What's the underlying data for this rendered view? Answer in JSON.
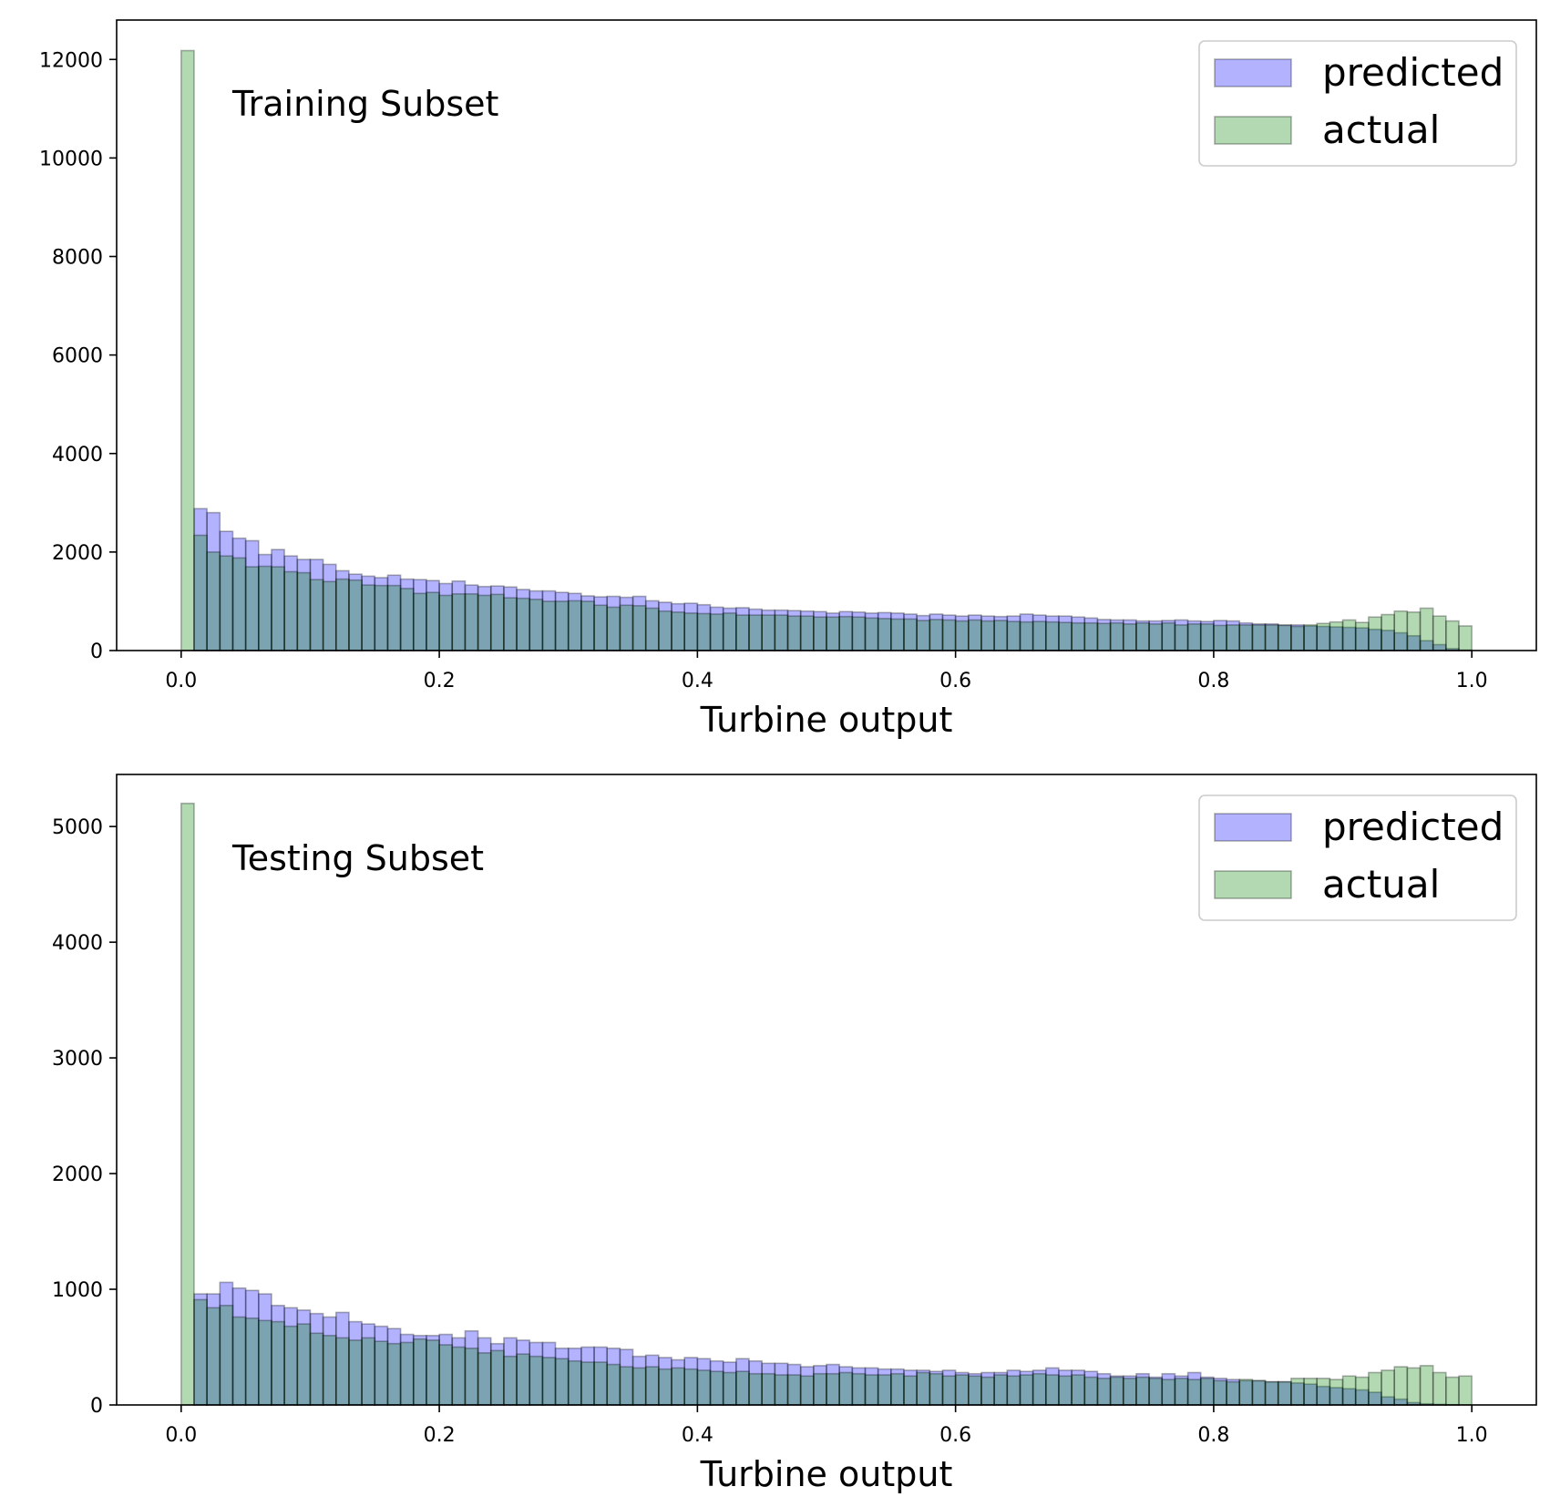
{
  "chart_data": [
    {
      "type": "bar",
      "annotation": "Training Subset",
      "xlabel": "Turbine output",
      "ylabel": "",
      "xlim": [
        -0.05,
        1.05
      ],
      "ylim": [
        0,
        12800
      ],
      "xticks": [
        0.0,
        0.2,
        0.4,
        0.6,
        0.8,
        1.0
      ],
      "xtick_labels": [
        "0.0",
        "0.2",
        "0.4",
        "0.6",
        "0.8",
        "1.0"
      ],
      "yticks": [
        0,
        2000,
        4000,
        6000,
        8000,
        10000,
        12000
      ],
      "ytick_labels": [
        "0",
        "2000",
        "4000",
        "6000",
        "8000",
        "10000",
        "12000"
      ],
      "bins": 100,
      "bin_range": [
        0.0,
        1.0
      ],
      "legend_position": "top-right",
      "grid": false,
      "series": [
        {
          "name": "predicted",
          "color": "#0000ff",
          "values": [
            0,
            2880,
            2800,
            2420,
            2280,
            2230,
            1950,
            2050,
            1920,
            1850,
            1850,
            1750,
            1620,
            1550,
            1510,
            1480,
            1530,
            1450,
            1440,
            1420,
            1360,
            1410,
            1330,
            1300,
            1310,
            1290,
            1240,
            1210,
            1210,
            1180,
            1160,
            1110,
            1090,
            1100,
            1080,
            1100,
            1010,
            980,
            950,
            960,
            930,
            880,
            860,
            870,
            840,
            820,
            820,
            810,
            800,
            790,
            760,
            790,
            780,
            760,
            770,
            760,
            740,
            710,
            740,
            720,
            700,
            720,
            700,
            690,
            700,
            740,
            720,
            700,
            700,
            680,
            660,
            630,
            620,
            620,
            600,
            600,
            610,
            620,
            600,
            590,
            610,
            600,
            560,
            540,
            540,
            520,
            520,
            500,
            490,
            480,
            470,
            460,
            430,
            410,
            360,
            300,
            200,
            120,
            40,
            10
          ]
        },
        {
          "name": "actual",
          "color": "#008000",
          "values": [
            12180,
            2340,
            2000,
            1920,
            1880,
            1700,
            1710,
            1700,
            1600,
            1580,
            1440,
            1400,
            1450,
            1430,
            1330,
            1320,
            1320,
            1260,
            1160,
            1180,
            1120,
            1150,
            1150,
            1120,
            1140,
            1070,
            1060,
            1040,
            1000,
            1000,
            1010,
            1000,
            920,
            880,
            920,
            910,
            860,
            800,
            780,
            760,
            750,
            740,
            760,
            720,
            720,
            720,
            720,
            700,
            700,
            680,
            680,
            690,
            680,
            660,
            650,
            640,
            640,
            610,
            630,
            620,
            600,
            620,
            600,
            610,
            590,
            580,
            590,
            580,
            570,
            560,
            560,
            550,
            560,
            540,
            560,
            540,
            560,
            520,
            540,
            540,
            510,
            520,
            520,
            520,
            520,
            510,
            490,
            520,
            550,
            580,
            620,
            570,
            680,
            730,
            800,
            780,
            860,
            700,
            600,
            500
          ]
        }
      ]
    },
    {
      "type": "bar",
      "annotation": "Testing Subset",
      "xlabel": "Turbine output",
      "ylabel": "",
      "xlim": [
        -0.05,
        1.05
      ],
      "ylim": [
        0,
        5450
      ],
      "xticks": [
        0.0,
        0.2,
        0.4,
        0.6,
        0.8,
        1.0
      ],
      "xtick_labels": [
        "0.0",
        "0.2",
        "0.4",
        "0.6",
        "0.8",
        "1.0"
      ],
      "yticks": [
        0,
        1000,
        2000,
        3000,
        4000,
        5000
      ],
      "ytick_labels": [
        "0",
        "1000",
        "2000",
        "3000",
        "4000",
        "5000"
      ],
      "bins": 100,
      "bin_range": [
        0.0,
        1.0
      ],
      "legend_position": "top-right",
      "grid": false,
      "series": [
        {
          "name": "predicted",
          "color": "#0000ff",
          "values": [
            0,
            960,
            960,
            1060,
            1010,
            990,
            960,
            860,
            840,
            820,
            790,
            760,
            800,
            720,
            700,
            680,
            660,
            610,
            600,
            600,
            610,
            580,
            640,
            580,
            530,
            580,
            560,
            540,
            540,
            490,
            490,
            500,
            500,
            490,
            480,
            420,
            430,
            410,
            390,
            410,
            400,
            380,
            370,
            400,
            380,
            360,
            360,
            350,
            330,
            340,
            350,
            330,
            320,
            320,
            310,
            310,
            300,
            300,
            290,
            300,
            280,
            270,
            280,
            280,
            300,
            290,
            300,
            320,
            300,
            300,
            290,
            270,
            250,
            250,
            270,
            240,
            270,
            250,
            280,
            240,
            230,
            220,
            210,
            210,
            200,
            200,
            190,
            180,
            160,
            150,
            140,
            130,
            110,
            70,
            50,
            20,
            10,
            5,
            2,
            0
          ]
        },
        {
          "name": "actual",
          "color": "#008000",
          "values": [
            5200,
            910,
            840,
            860,
            760,
            750,
            730,
            720,
            680,
            700,
            620,
            600,
            580,
            560,
            580,
            550,
            530,
            540,
            570,
            560,
            520,
            500,
            490,
            450,
            470,
            420,
            440,
            420,
            410,
            400,
            380,
            370,
            370,
            350,
            330,
            320,
            330,
            310,
            320,
            310,
            300,
            290,
            280,
            290,
            270,
            270,
            260,
            260,
            250,
            270,
            270,
            280,
            270,
            260,
            260,
            270,
            250,
            280,
            270,
            250,
            260,
            250,
            240,
            260,
            250,
            260,
            270,
            260,
            250,
            260,
            240,
            230,
            240,
            230,
            240,
            230,
            220,
            230,
            220,
            230,
            210,
            200,
            220,
            210,
            200,
            200,
            230,
            230,
            230,
            220,
            250,
            240,
            280,
            300,
            330,
            320,
            340,
            280,
            240,
            250
          ]
        }
      ]
    }
  ]
}
